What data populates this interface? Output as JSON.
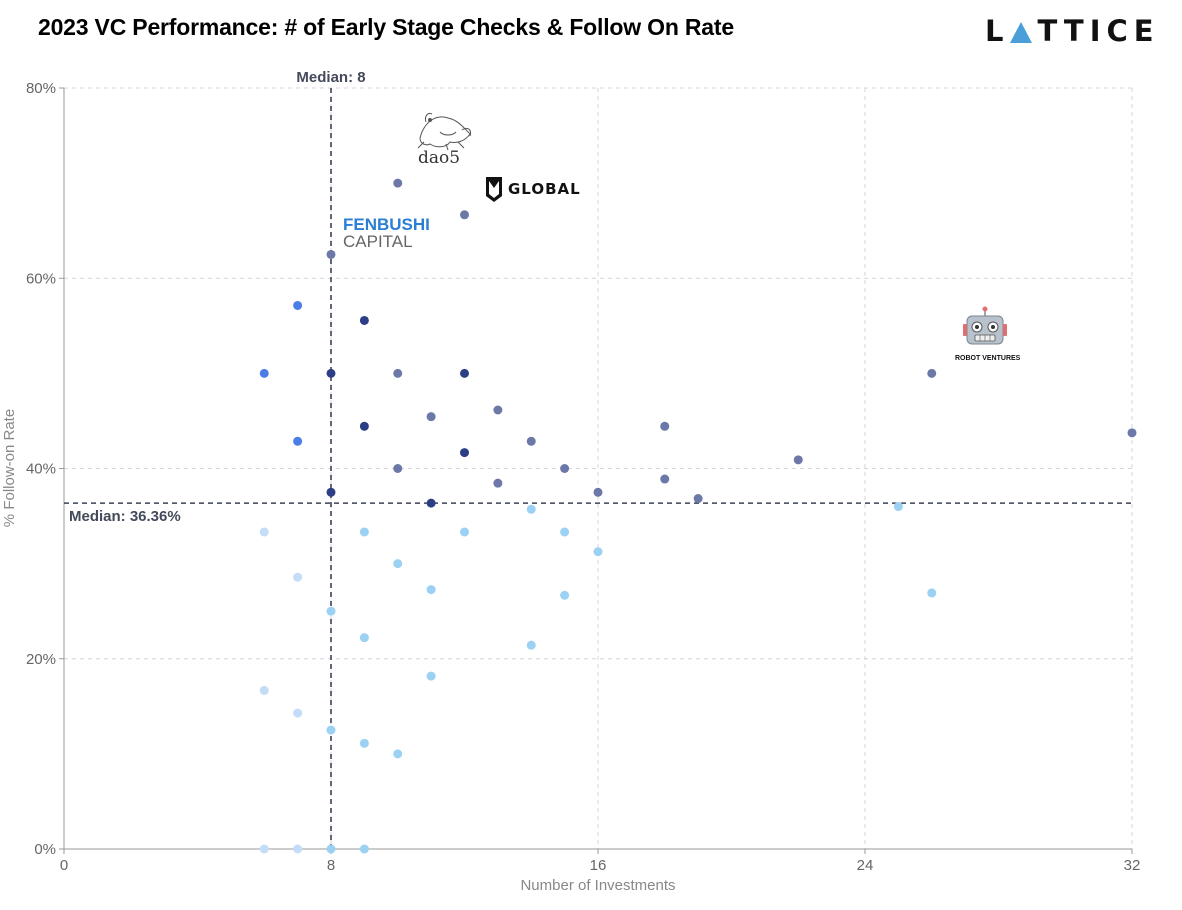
{
  "header": {
    "title": "2023 VC Performance: # of Early Stage Checks & Follow On Rate",
    "brand_pre": "L",
    "brand_post": "TTICE"
  },
  "chart_data": {
    "type": "scatter",
    "title": "2023 VC Performance: # of Early Stage Checks & Follow On Rate",
    "xlabel": "Number of Investments",
    "ylabel": "% Follow-on Rate",
    "xlim": [
      0,
      32
    ],
    "ylim": [
      0,
      80
    ],
    "xticks": [
      0,
      8,
      16,
      24,
      32
    ],
    "xtick_labels": [
      "0",
      "8",
      "16",
      "24",
      "32"
    ],
    "yticks": [
      0,
      20,
      40,
      60,
      80
    ],
    "ytick_labels": [
      "0%",
      "20%",
      "40%",
      "60%",
      "80%"
    ],
    "grid": true,
    "median_x": {
      "value": 8,
      "label": "Median: 8"
    },
    "median_y": {
      "value": 36.36,
      "label": "Median: 36.36%"
    },
    "colors": {
      "slate": "#6b78a8",
      "navy": "#2c3e85",
      "blue": "#4a7ee6",
      "light_blue": "#9bd1f2",
      "pale_blue": "#c3dcf7"
    },
    "points": [
      {
        "x": 10,
        "y": 70,
        "c": "slate"
      },
      {
        "x": 12,
        "y": 66.67,
        "c": "slate"
      },
      {
        "x": 8,
        "y": 62.5,
        "c": "slate"
      },
      {
        "x": 7,
        "y": 57.14,
        "c": "blue"
      },
      {
        "x": 9,
        "y": 55.56,
        "c": "navy"
      },
      {
        "x": 6,
        "y": 50,
        "c": "blue"
      },
      {
        "x": 8,
        "y": 50,
        "c": "navy"
      },
      {
        "x": 10,
        "y": 50,
        "c": "slate"
      },
      {
        "x": 12,
        "y": 50,
        "c": "navy"
      },
      {
        "x": 26,
        "y": 50,
        "c": "slate"
      },
      {
        "x": 13,
        "y": 46.15,
        "c": "slate"
      },
      {
        "x": 11,
        "y": 45.45,
        "c": "slate"
      },
      {
        "x": 9,
        "y": 44.44,
        "c": "navy"
      },
      {
        "x": 18,
        "y": 44.44,
        "c": "slate"
      },
      {
        "x": 32,
        "y": 43.75,
        "c": "slate"
      },
      {
        "x": 7,
        "y": 42.86,
        "c": "blue"
      },
      {
        "x": 14,
        "y": 42.86,
        "c": "slate"
      },
      {
        "x": 12,
        "y": 41.67,
        "c": "navy"
      },
      {
        "x": 22,
        "y": 40.91,
        "c": "slate"
      },
      {
        "x": 10,
        "y": 40,
        "c": "slate"
      },
      {
        "x": 15,
        "y": 40,
        "c": "slate"
      },
      {
        "x": 18,
        "y": 38.89,
        "c": "slate"
      },
      {
        "x": 13,
        "y": 38.46,
        "c": "slate"
      },
      {
        "x": 8,
        "y": 37.5,
        "c": "navy"
      },
      {
        "x": 16,
        "y": 37.5,
        "c": "slate"
      },
      {
        "x": 19,
        "y": 36.84,
        "c": "slate"
      },
      {
        "x": 11,
        "y": 36.36,
        "c": "navy"
      },
      {
        "x": 14,
        "y": 35.71,
        "c": "light_blue"
      },
      {
        "x": 25,
        "y": 36,
        "c": "light_blue"
      },
      {
        "x": 6,
        "y": 33.33,
        "c": "pale_blue"
      },
      {
        "x": 9,
        "y": 33.33,
        "c": "light_blue"
      },
      {
        "x": 12,
        "y": 33.33,
        "c": "light_blue"
      },
      {
        "x": 15,
        "y": 33.33,
        "c": "light_blue"
      },
      {
        "x": 16,
        "y": 31.25,
        "c": "light_blue"
      },
      {
        "x": 10,
        "y": 30,
        "c": "light_blue"
      },
      {
        "x": 7,
        "y": 28.57,
        "c": "pale_blue"
      },
      {
        "x": 11,
        "y": 27.27,
        "c": "light_blue"
      },
      {
        "x": 26,
        "y": 26.92,
        "c": "light_blue"
      },
      {
        "x": 15,
        "y": 26.67,
        "c": "light_blue"
      },
      {
        "x": 8,
        "y": 25,
        "c": "light_blue"
      },
      {
        "x": 9,
        "y": 22.22,
        "c": "light_blue"
      },
      {
        "x": 14,
        "y": 21.43,
        "c": "light_blue"
      },
      {
        "x": 11,
        "y": 18.18,
        "c": "light_blue"
      },
      {
        "x": 6,
        "y": 16.67,
        "c": "pale_blue"
      },
      {
        "x": 7,
        "y": 14.29,
        "c": "pale_blue"
      },
      {
        "x": 8,
        "y": 12.5,
        "c": "light_blue"
      },
      {
        "x": 9,
        "y": 11.11,
        "c": "light_blue"
      },
      {
        "x": 10,
        "y": 10,
        "c": "light_blue"
      },
      {
        "x": 6,
        "y": 0,
        "c": "pale_blue"
      },
      {
        "x": 7,
        "y": 0,
        "c": "pale_blue"
      },
      {
        "x": 8,
        "y": 0,
        "c": "light_blue"
      },
      {
        "x": 9,
        "y": 0,
        "c": "light_blue"
      }
    ],
    "annotations": {
      "dao5": "dao5",
      "global": "GLOBAL",
      "fenbushi_line1": "FENBUSHI",
      "fenbushi_line2": "CAPITAL",
      "robot_ventures": "ROBOT VENTURES"
    }
  }
}
